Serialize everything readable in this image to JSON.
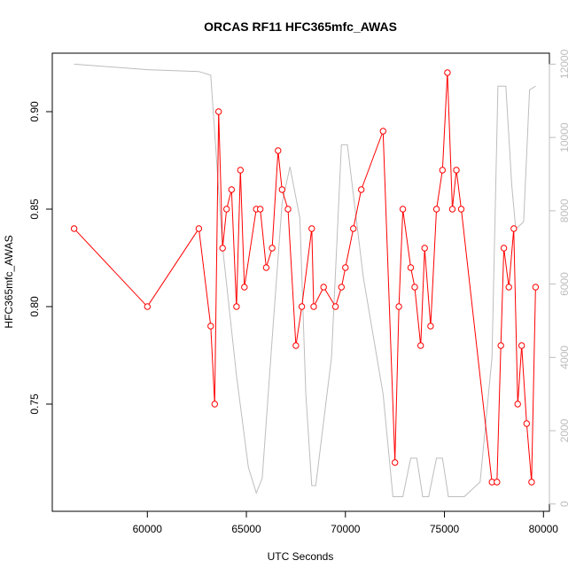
{
  "chart_data": {
    "type": "line",
    "title": "ORCAS RF11 HFC365mfc_AWAS",
    "xlabel": "UTC Seconds",
    "ylabel": "HFC365mfc_AWAS",
    "xlim": [
      55200,
      80300
    ],
    "ylim": [
      0.695,
      0.93
    ],
    "y2lim": [
      -200,
      12300
    ],
    "x_ticks": [
      60000,
      65000,
      70000,
      75000,
      80000
    ],
    "x_tick_labels": [
      "60000",
      "65000",
      "70000",
      "75000",
      "80000"
    ],
    "y_ticks": [
      0.75,
      0.8,
      0.85,
      0.9
    ],
    "y_tick_labels": [
      "0.75",
      "0.80",
      "0.85",
      "0.90"
    ],
    "y2_ticks": [
      0,
      2000,
      4000,
      6000,
      8000,
      10000,
      12000
    ],
    "y2_tick_labels": [
      "0",
      "2000",
      "4000",
      "6000",
      "8000",
      "10000",
      "12000"
    ],
    "grid": false,
    "colors": {
      "series": "#ff0000",
      "altitude": "#bdbdbd",
      "axes": "#000000"
    },
    "series": [
      {
        "color": "#ff0000",
        "style": "line+open-circles",
        "x": [
          56300,
          60000,
          62600,
          63200,
          63400,
          63600,
          63800,
          64000,
          64250,
          64500,
          64700,
          64900,
          65500,
          65700,
          66000,
          66300,
          66600,
          66800,
          67100,
          67500,
          67800,
          68300,
          68400,
          68900,
          69500,
          69800,
          70000,
          70400,
          70800,
          71900,
          72500,
          72700,
          72900,
          73300,
          73500,
          73800,
          74000,
          74300,
          74600,
          74900,
          75150,
          75400,
          75600,
          75850,
          77400,
          77650,
          77850,
          78000,
          78250,
          78500,
          78700,
          78900,
          79150,
          79400,
          79600
        ],
        "y": [
          0.84,
          0.8,
          0.84,
          0.79,
          0.75,
          0.9,
          0.83,
          0.85,
          0.86,
          0.8,
          0.87,
          0.81,
          0.85,
          0.85,
          0.82,
          0.83,
          0.88,
          0.86,
          0.85,
          0.78,
          0.8,
          0.84,
          0.8,
          0.81,
          0.8,
          0.81,
          0.82,
          0.84,
          0.86,
          0.89,
          0.72,
          0.8,
          0.85,
          0.82,
          0.81,
          0.78,
          0.83,
          0.79,
          0.85,
          0.87,
          0.92,
          0.85,
          0.87,
          0.85,
          0.71,
          0.71,
          0.78,
          0.83,
          0.81,
          0.84,
          0.75,
          0.78,
          0.74,
          0.71,
          0.81
        ]
      },
      {
        "color": "#bdbdbd",
        "style": "line",
        "axis": "right",
        "x": [
          56300,
          60000,
          62600,
          63200,
          63800,
          64500,
          65100,
          65500,
          65800,
          66300,
          66800,
          67200,
          67700,
          68000,
          68300,
          68500,
          69300,
          69800,
          70100,
          70900,
          71900,
          72400,
          72900,
          73300,
          73600,
          73900,
          74200,
          74600,
          74900,
          75200,
          75700,
          76000,
          76800,
          77400,
          77700,
          78100,
          78400,
          78600,
          79000,
          79300,
          79600
        ],
        "y": [
          12000,
          11850,
          11800,
          11700,
          7000,
          3500,
          1000,
          300,
          700,
          4500,
          8200,
          9200,
          7800,
          3000,
          500,
          500,
          4000,
          9800,
          9800,
          6200,
          3000,
          200,
          200,
          1250,
          1250,
          200,
          200,
          1250,
          1250,
          200,
          200,
          200,
          600,
          4000,
          11400,
          11400,
          8700,
          7500,
          7700,
          11300,
          11400
        ]
      }
    ]
  }
}
